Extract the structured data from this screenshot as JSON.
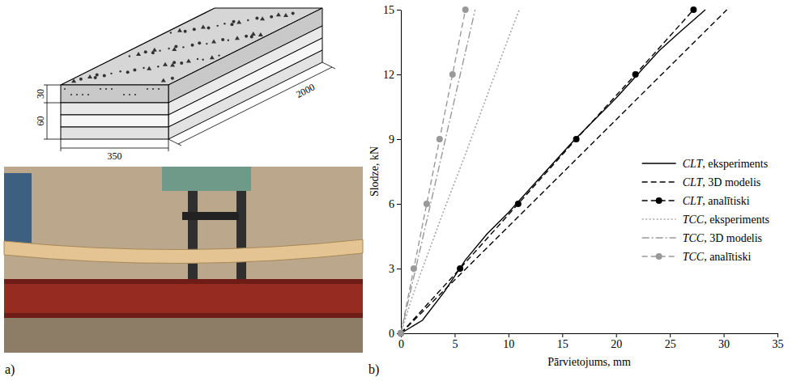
{
  "panels": {
    "a": {
      "label": "a)",
      "dimensions": {
        "concrete_thickness": 30,
        "clt_thickness": 60,
        "width": 350,
        "length": 2000
      }
    },
    "b": {
      "label": "b)"
    }
  },
  "chart_data": {
    "type": "line",
    "x_label": "Pārvietojums, mm",
    "y_label": "Slodze, kN",
    "xlim": [
      0,
      35
    ],
    "xticks": [
      0,
      5,
      10,
      15,
      20,
      25,
      30,
      35
    ],
    "ylim": [
      0,
      15
    ],
    "yticks": [
      0,
      3,
      6,
      9,
      12,
      15
    ],
    "grid": false,
    "legend": "lower right",
    "series": [
      {
        "name": "CLT, eksperiments",
        "color": "#000000",
        "line_style": "solid",
        "marker": "none",
        "x": [
          0,
          2,
          4,
          6,
          8,
          10,
          12,
          14,
          16,
          18,
          20,
          22,
          24,
          26,
          28.3
        ],
        "values": [
          0,
          0.6,
          1.9,
          3.4,
          4.6,
          5.6,
          6.7,
          7.8,
          8.9,
          9.9,
          10.9,
          12,
          13.1,
          14.0,
          15
        ]
      },
      {
        "name": "CLT, 3D modelis",
        "color": "#000000",
        "line_style": "dashed",
        "marker": "none",
        "x": [
          0,
          30.3
        ],
        "values": [
          0,
          15
        ]
      },
      {
        "name": "CLT, analītiski",
        "color": "#000000",
        "line_style": "dashed",
        "marker": "circle",
        "x": [
          0,
          5.5,
          10.9,
          16.3,
          21.8,
          27.2
        ],
        "values": [
          0,
          3,
          6,
          9,
          12,
          15
        ]
      },
      {
        "name": "TCC, eksperiments",
        "color": "#a6a6a6",
        "line_style": "dotted",
        "marker": "none",
        "x": [
          0,
          0.5,
          1,
          2,
          4,
          6,
          8,
          10,
          11
        ],
        "values": [
          0,
          0.8,
          1.6,
          3,
          5.7,
          8.3,
          11,
          13.7,
          15
        ]
      },
      {
        "name": "TCC, 3D modelis",
        "color": "#999999",
        "line_style": "dashdot",
        "marker": "none",
        "x": [
          0,
          6.9
        ],
        "values": [
          0,
          15
        ]
      },
      {
        "name": "TCC, analītiski",
        "color": "#999999",
        "line_style": "dashed",
        "marker": "circle",
        "x": [
          0,
          1.2,
          2.4,
          3.6,
          4.8,
          6.0
        ],
        "values": [
          0,
          3,
          6,
          9,
          12,
          15
        ]
      }
    ]
  }
}
